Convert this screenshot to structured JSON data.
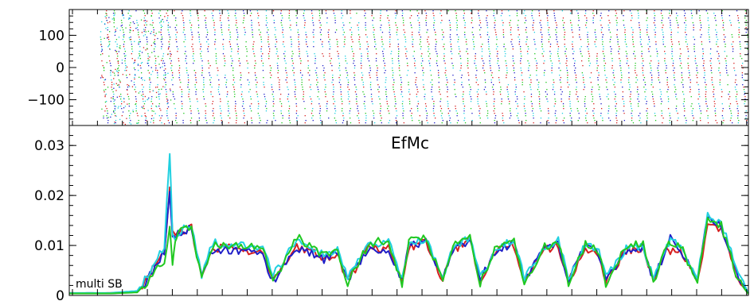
{
  "chart_data": [
    {
      "type": "scatter",
      "panel": "phase",
      "title": "",
      "xlabel": "",
      "ylabel": "",
      "ylim": [
        -180,
        180
      ],
      "yticks": [
        {
          "value": 100,
          "label": "100"
        },
        {
          "value": 0,
          "label": "0"
        },
        {
          "value": -100,
          "label": "−100"
        }
      ],
      "series": [
        {
          "color": "#d62020"
        },
        {
          "color": "#1f1fc8"
        },
        {
          "color": "#20d0e0"
        },
        {
          "color": "#20c820"
        }
      ],
      "stripe_start_x": 0.045,
      "stripe_spacing_x": 0.0112,
      "note": "dense dotted diagonal stripes of phase values wrapping between -180 and 180"
    },
    {
      "type": "line",
      "panel": "efficiency",
      "title": "EfMc",
      "annotation": "multi SB",
      "xlabel": "",
      "ylabel": "",
      "xlim": [
        0,
        1
      ],
      "ylim": [
        0,
        0.034
      ],
      "yticks": [
        {
          "value": 0,
          "label": "0"
        },
        {
          "value": 0.01,
          "label": "0.01"
        },
        {
          "value": 0.02,
          "label": "0.02"
        },
        {
          "value": 0.03,
          "label": "0.03"
        }
      ],
      "x": [
        0.0,
        0.03,
        0.06,
        0.1,
        0.115,
        0.13,
        0.14,
        0.148,
        0.152,
        0.156,
        0.16,
        0.165,
        0.18,
        0.195,
        0.207,
        0.215,
        0.235,
        0.26,
        0.285,
        0.3,
        0.335,
        0.35,
        0.375,
        0.395,
        0.41,
        0.44,
        0.455,
        0.47,
        0.49,
        0.5,
        0.525,
        0.55,
        0.565,
        0.59,
        0.605,
        0.63,
        0.655,
        0.67,
        0.7,
        0.72,
        0.735,
        0.76,
        0.78,
        0.79,
        0.82,
        0.845,
        0.86,
        0.88,
        0.885,
        0.9,
        0.925,
        0.94,
        0.96,
        0.985,
        1.0
      ],
      "series": [
        {
          "color": "#d62020",
          "values": [
            0.0005,
            0.0004,
            0.0005,
            0.0008,
            0.0035,
            0.0075,
            0.009,
            0.0215,
            0.0125,
            0.0118,
            0.0128,
            0.013,
            0.0135,
            0.0035,
            0.008,
            0.0095,
            0.0095,
            0.009,
            0.0085,
            0.003,
            0.0098,
            0.0092,
            0.0075,
            0.008,
            0.0028,
            0.0095,
            0.0092,
            0.0095,
            0.0025,
            0.0095,
            0.011,
            0.0028,
            0.009,
            0.011,
            0.003,
            0.009,
            0.01,
            0.003,
            0.009,
            0.01,
            0.0028,
            0.0095,
            0.008,
            0.0025,
            0.009,
            0.0095,
            0.0028,
            0.0098,
            0.009,
            0.009,
            0.003,
            0.014,
            0.013,
            0.003,
            0.0005
          ]
        },
        {
          "color": "#1f1fc8",
          "values": [
            0.0004,
            0.0005,
            0.0004,
            0.0007,
            0.003,
            0.0068,
            0.0085,
            0.021,
            0.012,
            0.0112,
            0.0122,
            0.0125,
            0.0138,
            0.0038,
            0.0085,
            0.0092,
            0.009,
            0.0088,
            0.008,
            0.0028,
            0.0092,
            0.0088,
            0.0072,
            0.0085,
            0.003,
            0.0092,
            0.0088,
            0.009,
            0.0028,
            0.01,
            0.0108,
            0.003,
            0.009,
            0.0112,
            0.0032,
            0.0092,
            0.0105,
            0.003,
            0.0095,
            0.0105,
            0.003,
            0.01,
            0.0082,
            0.003,
            0.0092,
            0.0095,
            0.003,
            0.0095,
            0.0118,
            0.0092,
            0.0032,
            0.0165,
            0.0135,
            0.004,
            0.0005
          ]
        },
        {
          "color": "#20d0e0",
          "values": [
            0.0005,
            0.0005,
            0.0005,
            0.0009,
            0.004,
            0.008,
            0.01,
            0.029,
            0.012,
            0.011,
            0.0125,
            0.013,
            0.014,
            0.004,
            0.009,
            0.0105,
            0.01,
            0.01,
            0.0095,
            0.004,
            0.011,
            0.01,
            0.008,
            0.009,
            0.0035,
            0.01,
            0.01,
            0.011,
            0.0035,
            0.01,
            0.0115,
            0.0038,
            0.0095,
            0.0115,
            0.0038,
            0.0095,
            0.011,
            0.0035,
            0.0095,
            0.011,
            0.0035,
            0.0105,
            0.009,
            0.0035,
            0.0095,
            0.0098,
            0.0035,
            0.01,
            0.0108,
            0.01,
            0.004,
            0.016,
            0.0145,
            0.0045,
            0.0005
          ]
        },
        {
          "color": "#20c820",
          "values": [
            0.0004,
            0.0004,
            0.0004,
            0.0006,
            0.0028,
            0.0065,
            0.006,
            0.013,
            0.0062,
            0.0108,
            0.012,
            0.0128,
            0.0135,
            0.003,
            0.0085,
            0.01,
            0.01,
            0.01,
            0.0095,
            0.0025,
            0.0118,
            0.01,
            0.008,
            0.0092,
            0.0025,
            0.01,
            0.0108,
            0.011,
            0.0022,
            0.011,
            0.0118,
            0.0025,
            0.01,
            0.0115,
            0.0025,
            0.01,
            0.0108,
            0.0025,
            0.0098,
            0.0108,
            0.0025,
            0.0102,
            0.0088,
            0.0022,
            0.01,
            0.0105,
            0.0022,
            0.0105,
            0.01,
            0.01,
            0.0025,
            0.015,
            0.014,
            0.003,
            0.0003
          ]
        }
      ]
    }
  ]
}
